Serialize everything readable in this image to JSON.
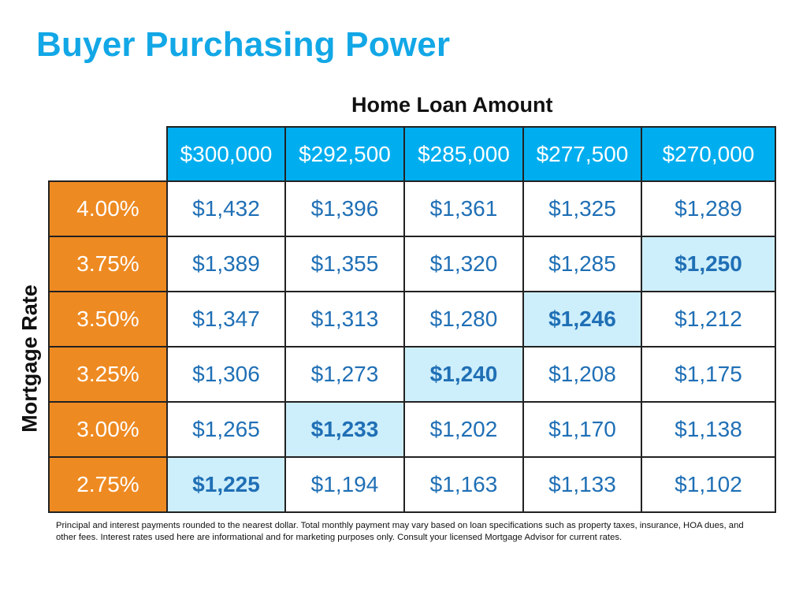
{
  "title": "Buyer Purchasing Power",
  "column_axis_label": "Home Loan Amount",
  "row_axis_label": "Mortgage Rate",
  "colors": {
    "title": "#12A7E6",
    "header": "#00AEEF",
    "rate": "#EE8A22",
    "highlight": "#CDEEFB",
    "value_text": "#1F6FB5"
  },
  "loan_amounts": [
    "$300,000",
    "$292,500",
    "$285,000",
    "$277,500",
    "$270,000"
  ],
  "rows": [
    {
      "rate": "4.00%",
      "payments": [
        "$1,432",
        "$1,396",
        "$1,361",
        "$1,325",
        "$1,289"
      ],
      "highlight_index": -1
    },
    {
      "rate": "3.75%",
      "payments": [
        "$1,389",
        "$1,355",
        "$1,320",
        "$1,285",
        "$1,250"
      ],
      "highlight_index": 4
    },
    {
      "rate": "3.50%",
      "payments": [
        "$1,347",
        "$1,313",
        "$1,280",
        "$1,246",
        "$1,212"
      ],
      "highlight_index": 3
    },
    {
      "rate": "3.25%",
      "payments": [
        "$1,306",
        "$1,273",
        "$1,240",
        "$1,208",
        "$1,175"
      ],
      "highlight_index": 2
    },
    {
      "rate": "3.00%",
      "payments": [
        "$1,265",
        "$1,233",
        "$1,202",
        "$1,170",
        "$1,138"
      ],
      "highlight_index": 1
    },
    {
      "rate": "2.75%",
      "payments": [
        "$1,225",
        "$1,194",
        "$1,163",
        "$1,133",
        "$1,102"
      ],
      "highlight_index": 0
    }
  ],
  "footnote": "Principal and interest payments rounded to the nearest dollar. Total monthly payment may vary based on loan specifications such as property taxes, insurance, HOA dues, and other fees. Interest rates used here are informational and for marketing purposes only. Consult your licensed Mortgage Advisor for current rates."
}
